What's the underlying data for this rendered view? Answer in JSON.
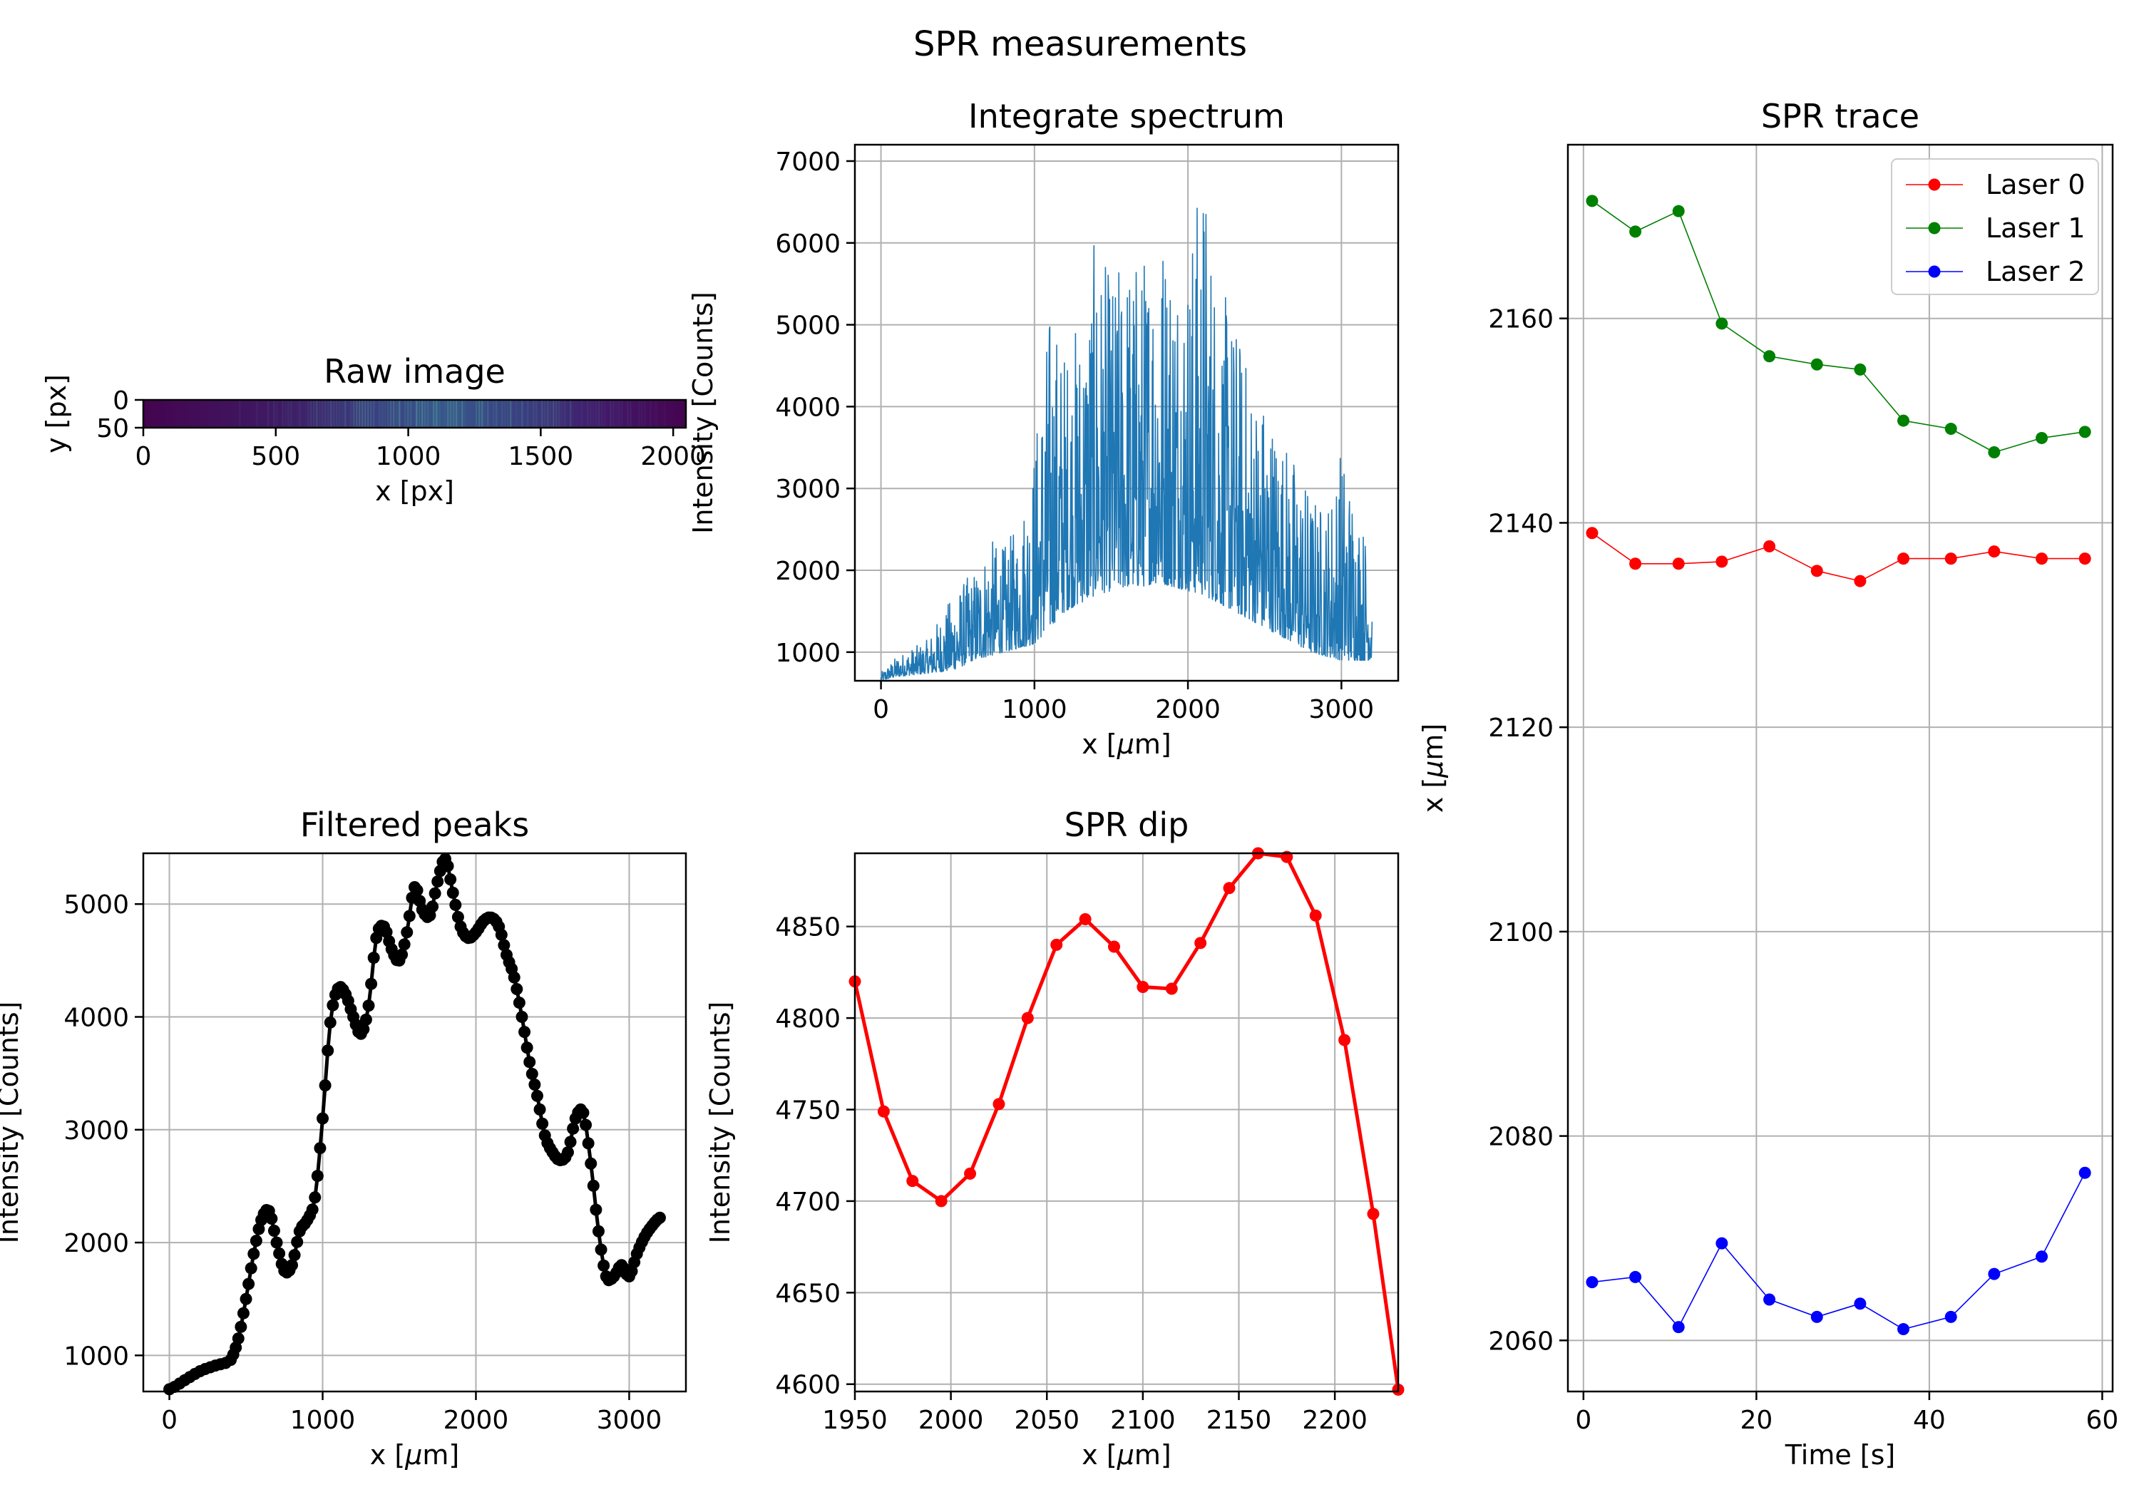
{
  "figure": {
    "suptitle": "SPR measurements"
  },
  "chart_data": [
    {
      "id": "raw_image",
      "type": "heatmap",
      "title": "Raw image",
      "xlabel": "x [px]",
      "ylabel": "y [px]",
      "xlim": [
        0,
        2048
      ],
      "ylim": [
        0,
        50
      ],
      "xticks": [
        0,
        500,
        1000,
        1500,
        2000
      ],
      "yticks": [
        0,
        50
      ],
      "colormap": "viridis",
      "note_values": "dark purple background with faint brighter vertical stripes concentrated around x 700-1700"
    },
    {
      "id": "integrate_spectrum",
      "type": "line",
      "title": "Integrate spectrum",
      "xlabel": "x [$\\mu$m]",
      "ylabel": "Intensity [Counts]",
      "xlim": [
        -170,
        3370
      ],
      "ylim": [
        650,
        7200
      ],
      "xticks": [
        0,
        1000,
        2000,
        3000
      ],
      "yticks": [
        1000,
        2000,
        3000,
        4000,
        5000,
        6000,
        7000
      ],
      "grid": true,
      "color": "#1f77b4",
      "x": [
        0,
        100,
        200,
        300,
        400,
        500,
        600,
        700,
        800,
        900,
        1000,
        1100,
        1200,
        1300,
        1400,
        1500,
        1600,
        1700,
        1800,
        1900,
        2000,
        2100,
        2200,
        2300,
        2400,
        2500,
        2600,
        2700,
        2800,
        2900,
        3000,
        3100,
        3200
      ],
      "lower": [
        650,
        700,
        720,
        740,
        760,
        800,
        900,
        950,
        1000,
        1050,
        1100,
        1300,
        1500,
        1600,
        1700,
        1750,
        1800,
        1800,
        1850,
        1800,
        1750,
        1700,
        1600,
        1500,
        1400,
        1300,
        1200,
        1100,
        1000,
        950,
        900,
        900,
        900
      ],
      "upper": [
        750,
        950,
        1050,
        1150,
        1500,
        1800,
        2000,
        2400,
        2300,
        2600,
        3600,
        5300,
        4800,
        5200,
        6100,
        5600,
        6000,
        5900,
        6500,
        6200,
        6000,
        7100,
        5500,
        5200,
        4500,
        4200,
        3800,
        3400,
        3000,
        2800,
        3600,
        2900,
        2200
      ]
    },
    {
      "id": "filtered_peaks",
      "type": "line",
      "title": "Filtered peaks",
      "xlabel": "x [$\\mu$m]",
      "ylabel": "Intensity [Counts]",
      "xlim": [
        -170,
        3370
      ],
      "ylim": [
        680,
        5450
      ],
      "xticks": [
        0,
        1000,
        2000,
        3000
      ],
      "yticks": [
        1000,
        2000,
        3000,
        4000,
        5000
      ],
      "grid": true,
      "color": "#000000",
      "marker": "o",
      "x": [
        0,
        100,
        200,
        300,
        400,
        450,
        500,
        550,
        600,
        650,
        700,
        750,
        800,
        850,
        900,
        950,
        1000,
        1050,
        1100,
        1150,
        1200,
        1250,
        1300,
        1350,
        1400,
        1450,
        1500,
        1550,
        1600,
        1650,
        1700,
        1750,
        1800,
        1850,
        1900,
        1950,
        2000,
        2050,
        2100,
        2150,
        2200,
        2250,
        2300,
        2350,
        2400,
        2450,
        2500,
        2550,
        2600,
        2650,
        2700,
        2750,
        2800,
        2850,
        2900,
        2950,
        3000,
        3050,
        3100,
        3150,
        3200
      ],
      "y": [
        700,
        780,
        860,
        910,
        960,
        1150,
        1500,
        1900,
        2200,
        2280,
        2000,
        1750,
        1800,
        2100,
        2200,
        2400,
        3100,
        3950,
        4250,
        4200,
        4000,
        3850,
        4100,
        4700,
        4800,
        4600,
        4500,
        4750,
        5150,
        4950,
        4900,
        5200,
        5400,
        5100,
        4800,
        4700,
        4750,
        4850,
        4880,
        4800,
        4550,
        4350,
        4000,
        3600,
        3300,
        2950,
        2800,
        2730,
        2800,
        3100,
        3150,
        2700,
        2100,
        1700,
        1700,
        1800,
        1700,
        1900,
        2050,
        2150,
        2220
      ]
    },
    {
      "id": "spr_dip",
      "type": "line",
      "title": "SPR dip",
      "xlabel": "x [$\\mu$m]",
      "ylabel": "Intensity [Counts]",
      "xlim": [
        1950,
        2233
      ],
      "ylim": [
        4596,
        4890
      ],
      "xticks": [
        1950,
        2000,
        2050,
        2100,
        2150,
        2200
      ],
      "yticks": [
        4600,
        4650,
        4700,
        4750,
        4800,
        4850
      ],
      "grid": true,
      "color": "#ff0000",
      "marker": "o",
      "x": [
        1950,
        1965,
        1980,
        1995,
        2010,
        2025,
        2040,
        2055,
        2070,
        2085,
        2100,
        2115,
        2130,
        2145,
        2160,
        2175,
        2190,
        2205,
        2220,
        2233
      ],
      "y": [
        4820,
        4749,
        4711,
        4700,
        4715,
        4753,
        4800,
        4840,
        4854,
        4839,
        4817,
        4816,
        4841,
        4871,
        4890,
        4888,
        4856,
        4788,
        4693,
        4597
      ]
    },
    {
      "id": "spr_trace",
      "type": "line",
      "title": "SPR trace",
      "xlabel": "Time [s]",
      "ylabel": "x [$\\mu$m]",
      "xlim": [
        -1.8,
        61.2
      ],
      "ylim": [
        2055,
        2177
      ],
      "xticks": [
        0,
        20,
        40,
        60
      ],
      "yticks": [
        2060,
        2080,
        2100,
        2120,
        2140,
        2160
      ],
      "grid": true,
      "legend_position": "top-right",
      "series": [
        {
          "name": "Laser 0",
          "color": "#ff0000",
          "x": [
            1,
            6,
            11,
            16,
            21.5,
            27,
            32,
            37,
            42.5,
            47.5,
            53,
            58
          ],
          "y": [
            2139,
            2136,
            2136,
            2136.2,
            2137.7,
            2135.3,
            2134.3,
            2136.5,
            2136.5,
            2137.2,
            2136.5,
            2136.5
          ]
        },
        {
          "name": "Laser 1",
          "color": "#008000",
          "x": [
            1,
            6,
            11,
            16,
            21.5,
            27,
            32,
            37,
            42.5,
            47.5,
            53,
            58
          ],
          "y": [
            2171.5,
            2168.5,
            2170.5,
            2159.5,
            2156.3,
            2155.5,
            2155,
            2150,
            2149.2,
            2146.9,
            2148.3,
            2148.9
          ]
        },
        {
          "name": "Laser 2",
          "color": "#0000ff",
          "x": [
            1,
            6,
            11,
            16,
            21.5,
            27,
            32,
            37,
            42.5,
            47.5,
            53,
            58
          ],
          "y": [
            2065.7,
            2066.2,
            2061.3,
            2069.5,
            2064,
            2062.3,
            2063.6,
            2061.1,
            2062.3,
            2066.5,
            2068.2,
            2076.4
          ]
        }
      ]
    }
  ]
}
